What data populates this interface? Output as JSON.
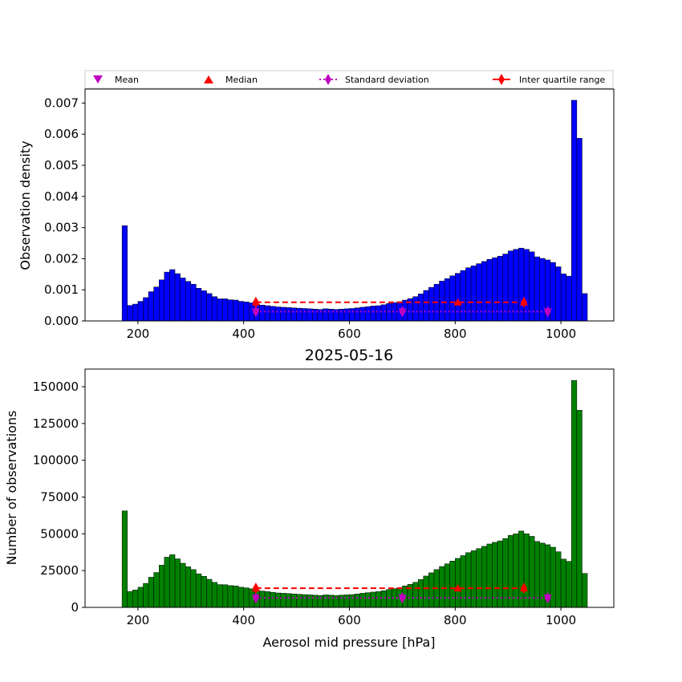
{
  "chart_data": [
    {
      "type": "bar",
      "ylabel": "Observation density",
      "xlim": [
        100,
        1100
      ],
      "ylim": [
        0,
        0.00745
      ],
      "xticks": [
        200,
        400,
        600,
        800,
        1000
      ],
      "yticks": [
        "0.000",
        "0.001",
        "0.002",
        "0.003",
        "0.004",
        "0.005",
        "0.006",
        "0.007"
      ],
      "ytick_values": [
        0,
        0.001,
        0.002,
        0.003,
        0.004,
        0.005,
        0.006,
        0.007
      ],
      "bar_color": "#0000ff",
      "bin_start": 170,
      "bin_width": 10,
      "values": [
        0.00306,
        0.0005,
        0.00054,
        0.00063,
        0.00075,
        0.00094,
        0.00109,
        0.00132,
        0.00157,
        0.00165,
        0.00152,
        0.00138,
        0.00127,
        0.00118,
        0.00105,
        0.00097,
        0.00088,
        0.00078,
        0.00071,
        0.00071,
        0.00068,
        0.00067,
        0.00063,
        0.00061,
        0.00058,
        0.00054,
        0.00051,
        0.00049,
        0.00047,
        0.00045,
        0.00044,
        0.00043,
        0.00042,
        0.00041,
        0.0004,
        0.00039,
        0.00038,
        0.00037,
        0.00039,
        0.00038,
        0.00037,
        0.00038,
        0.00039,
        0.0004,
        0.00042,
        0.00044,
        0.00046,
        0.00048,
        0.00049,
        0.00052,
        0.00056,
        0.00059,
        0.00062,
        0.00067,
        0.00072,
        0.00078,
        0.00087,
        0.00098,
        0.00108,
        0.00118,
        0.00128,
        0.00136,
        0.00145,
        0.00153,
        0.00162,
        0.00171,
        0.00177,
        0.00184,
        0.00191,
        0.00198,
        0.00203,
        0.00208,
        0.00215,
        0.00225,
        0.0023,
        0.00234,
        0.0023,
        0.00222,
        0.00206,
        0.00201,
        0.00196,
        0.00188,
        0.00174,
        0.00151,
        0.00144,
        0.00709,
        0.00587,
        0.00088
      ],
      "stats": {
        "mean": {
          "x": [
            423,
            700,
            975
          ],
          "y": [
            0.0003,
            0.0003,
            0.0003
          ]
        },
        "median": {
          "x": [
            423,
            805,
            930
          ],
          "y": [
            0.0006,
            0.0006,
            0.0006
          ]
        },
        "std_x": [
          423,
          700,
          975
        ],
        "std_y": 0.0003,
        "iqr_x": [
          423,
          930
        ],
        "iqr_y": 0.0006
      }
    },
    {
      "type": "bar",
      "title": "2025-05-16",
      "xlabel": "Aerosol mid pressure [hPa]",
      "ylabel": "Number of observations",
      "xlim": [
        100,
        1100
      ],
      "ylim": [
        0,
        162000
      ],
      "xticks": [
        200,
        400,
        600,
        800,
        1000
      ],
      "yticks": [
        "0",
        "25000",
        "50000",
        "75000",
        "100000",
        "125000",
        "150000"
      ],
      "ytick_values": [
        0,
        25000,
        50000,
        75000,
        100000,
        125000,
        150000
      ],
      "bar_color": "#008000",
      "bin_start": 170,
      "bin_width": 10,
      "values": [
        65600,
        10800,
        11800,
        13700,
        16300,
        20500,
        23700,
        28700,
        34100,
        35800,
        33000,
        30000,
        27600,
        25700,
        22800,
        21100,
        19100,
        17000,
        15500,
        15400,
        14800,
        14600,
        13700,
        13300,
        12600,
        11700,
        11100,
        10700,
        10200,
        9800,
        9600,
        9400,
        9100,
        8900,
        8700,
        8500,
        8300,
        8100,
        8500,
        8300,
        8100,
        8300,
        8500,
        8700,
        9100,
        9600,
        10000,
        10400,
        10700,
        11300,
        12200,
        12800,
        13500,
        14600,
        15700,
        17000,
        18900,
        21300,
        23500,
        25700,
        27800,
        29600,
        31500,
        33300,
        35200,
        37200,
        38500,
        40000,
        41500,
        43100,
        44200,
        45200,
        46800,
        49000,
        50000,
        51900,
        50000,
        48300,
        44800,
        43700,
        42600,
        40900,
        37800,
        32800,
        31300,
        154300,
        134000,
        23100
      ],
      "stats": {
        "mean": {
          "x": [
            423,
            700,
            975
          ],
          "y": [
            6500,
            6500,
            6500
          ]
        },
        "median": {
          "x": [
            423,
            805,
            930
          ],
          "y": [
            13000,
            13000,
            13000
          ]
        },
        "std_x": [
          423,
          700,
          975
        ],
        "std_y": 6500,
        "iqr_x": [
          423,
          930
        ],
        "iqr_y": 13000
      }
    }
  ],
  "legend": {
    "items": [
      {
        "label": "Mean",
        "marker": "triangle-down",
        "color": "#bf00bf"
      },
      {
        "label": "Median",
        "marker": "triangle-up",
        "color": "#ff0000"
      },
      {
        "label": "Standard deviation",
        "marker": "thin-diamond",
        "color": "#bf00bf"
      },
      {
        "label": "Inter quartile range",
        "marker": "thin-diamond",
        "color": "#ff0000"
      }
    ]
  }
}
